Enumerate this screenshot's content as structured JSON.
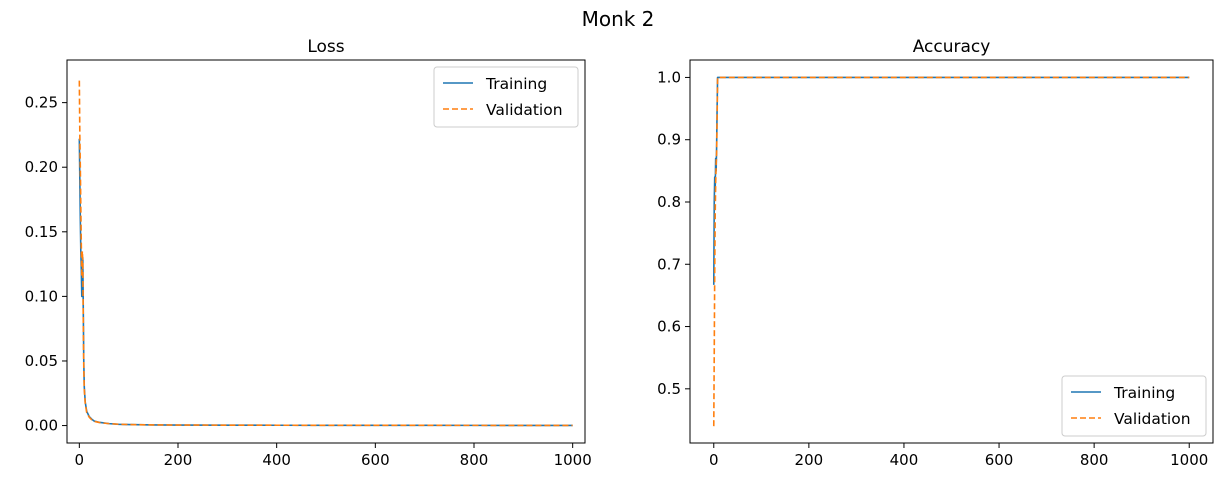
{
  "figure_title": "Monk 2",
  "colors": {
    "training": "#1f77b4",
    "validation": "#ff7f0e"
  },
  "chart_data": [
    {
      "type": "line",
      "title": "Loss",
      "xlabel": "",
      "ylabel": "",
      "xlim": [
        -25,
        1025
      ],
      "ylim": [
        -0.0135,
        0.283
      ],
      "xticks": [
        0,
        200,
        400,
        600,
        800,
        1000
      ],
      "xtick_labels": [
        "0",
        "200",
        "400",
        "600",
        "800",
        "1000"
      ],
      "yticks": [
        0.0,
        0.05,
        0.1,
        0.15,
        0.2,
        0.25
      ],
      "ytick_labels": [
        "0.00",
        "0.05",
        "0.10",
        "0.15",
        "0.20",
        "0.25"
      ],
      "grid": false,
      "legend": "upper right",
      "series": [
        {
          "name": "Training",
          "style": "solid",
          "x": [
            0,
            1,
            2,
            3,
            4,
            5,
            6,
            7,
            8,
            9,
            10,
            12,
            15,
            20,
            25,
            30,
            40,
            50,
            60,
            80,
            100,
            150,
            200,
            300,
            400,
            500,
            600,
            700,
            800,
            900,
            1000
          ],
          "y": [
            0.222,
            0.19,
            0.16,
            0.135,
            0.12,
            0.1,
            0.12,
            0.13,
            0.09,
            0.05,
            0.03,
            0.018,
            0.011,
            0.007,
            0.005,
            0.0035,
            0.0025,
            0.002,
            0.0015,
            0.001,
            0.0008,
            0.0005,
            0.0004,
            0.0003,
            0.00025,
            0.0002,
            0.00018,
            0.00016,
            0.00014,
            0.00012,
            0.0001
          ]
        },
        {
          "name": "Validation",
          "style": "dashed",
          "x": [
            0,
            1,
            2,
            3,
            4,
            5,
            6,
            7,
            8,
            9,
            10,
            12,
            15,
            20,
            25,
            30,
            40,
            50,
            60,
            80,
            100,
            150,
            200,
            300,
            400,
            500,
            600,
            700,
            800,
            900,
            1000
          ],
          "y": [
            0.267,
            0.225,
            0.2,
            0.17,
            0.14,
            0.115,
            0.135,
            0.128,
            0.08,
            0.045,
            0.028,
            0.017,
            0.01,
            0.0065,
            0.0045,
            0.0033,
            0.0024,
            0.0019,
            0.0015,
            0.001,
            0.0008,
            0.0005,
            0.0004,
            0.0003,
            0.00025,
            0.0002,
            0.00018,
            0.00016,
            0.00014,
            0.00012,
            0.0001
          ]
        }
      ]
    },
    {
      "type": "line",
      "title": "Accuracy",
      "xlabel": "",
      "ylabel": "",
      "xlim": [
        -50,
        1050
      ],
      "ylim": [
        0.413,
        1.028
      ],
      "xticks": [
        0,
        200,
        400,
        600,
        800,
        1000
      ],
      "xtick_labels": [
        "0",
        "200",
        "400",
        "600",
        "800",
        "1000"
      ],
      "yticks": [
        0.5,
        0.6,
        0.7,
        0.8,
        0.9,
        1.0
      ],
      "ytick_labels": [
        "0.5",
        "0.6",
        "0.7",
        "0.8",
        "0.9",
        "1.0"
      ],
      "grid": false,
      "legend": "lower right",
      "series": [
        {
          "name": "Training",
          "style": "solid",
          "x": [
            0,
            1,
            2,
            3,
            4,
            5,
            6,
            7,
            8,
            9,
            10,
            1000
          ],
          "y": [
            0.667,
            0.8,
            0.84,
            0.82,
            0.87,
            0.85,
            0.89,
            0.95,
            1.0,
            1.0,
            1.0,
            1.0
          ]
        },
        {
          "name": "Validation",
          "style": "dashed",
          "x": [
            0,
            1,
            2,
            3,
            4,
            5,
            6,
            7,
            8,
            9,
            10,
            1000
          ],
          "y": [
            0.44,
            0.56,
            0.69,
            0.78,
            0.83,
            0.86,
            0.88,
            0.93,
            1.0,
            1.0,
            1.0,
            1.0
          ]
        }
      ]
    }
  ]
}
